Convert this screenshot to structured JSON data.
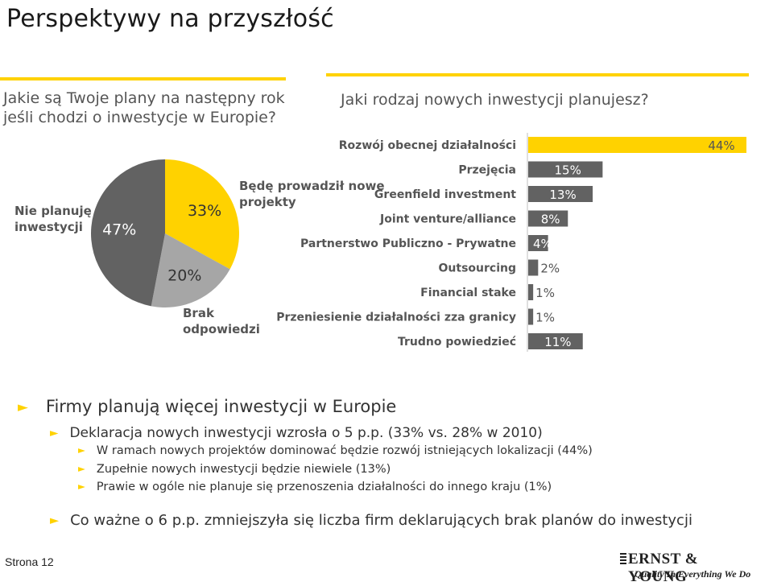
{
  "slide": {
    "title": "Perspektywy na przyszłość",
    "left_question": "Jakie są Twoje plany na następny rok jeśli chodzi o inwestycje w Europie?",
    "right_question": "Jaki rodzaj nowych inwestycji planujesz?"
  },
  "chart_data": [
    {
      "type": "pie",
      "title": "",
      "slices": [
        {
          "label": "Nie planuję inwestycji",
          "value": 47,
          "value_label": "47%",
          "color": "#626262"
        },
        {
          "label": "Będę prowadził nowe projekty",
          "value": 33,
          "value_label": "33%",
          "color": "#ffd200"
        },
        {
          "label": "Brak odpowiedzi",
          "value": 20,
          "value_label": "20%",
          "color": "#a6a6a6"
        }
      ]
    },
    {
      "type": "bar",
      "orientation": "horizontal",
      "title": "",
      "xlim": [
        0,
        44
      ],
      "categories": [
        "Rozwój obecnej działalności",
        "Przejęcia",
        "Greenfield investment",
        "Joint venture/alliance",
        "Partnerstwo Publiczno - Prywatne",
        "Outsourcing",
        "Financial stake",
        "Przeniesienie działalności zza granicy",
        "Trudno powiedzieć"
      ],
      "values": [
        44,
        15,
        13,
        8,
        4,
        2,
        1,
        1,
        11
      ],
      "value_labels": [
        "44%",
        "15%",
        "13%",
        "8%",
        "4%",
        "2%",
        "1%",
        "1%",
        "11%"
      ],
      "colors": [
        "#ffd200",
        "#626262",
        "#626262",
        "#626262",
        "#626262",
        "#626262",
        "#626262",
        "#626262",
        "#626262"
      ]
    }
  ],
  "bullets": {
    "main": "Firmy planują więcej inwestycji w Europie",
    "sub": "Deklaracja nowych inwestycji wzrosła o 5 p.p. (33% vs. 28% w 2010)",
    "details": [
      "W ramach nowych projektów dominować będzie rozwój istniejących lokalizacji (44%)",
      "Zupełnie nowych inwestycji będzie niewiele (13%)",
      "Prawie w ogóle nie planuje się przenoszenia działalności do innego kraju (1%)"
    ],
    "last": "Co ważne o 6 p.p. zmniejszyła się liczba firm deklarujących brak planów do inwestycji"
  },
  "footer": {
    "page": "Strona 12",
    "logo_name": "ERNST & YOUNG",
    "logo_tagline": "Quality In Everything We Do"
  }
}
